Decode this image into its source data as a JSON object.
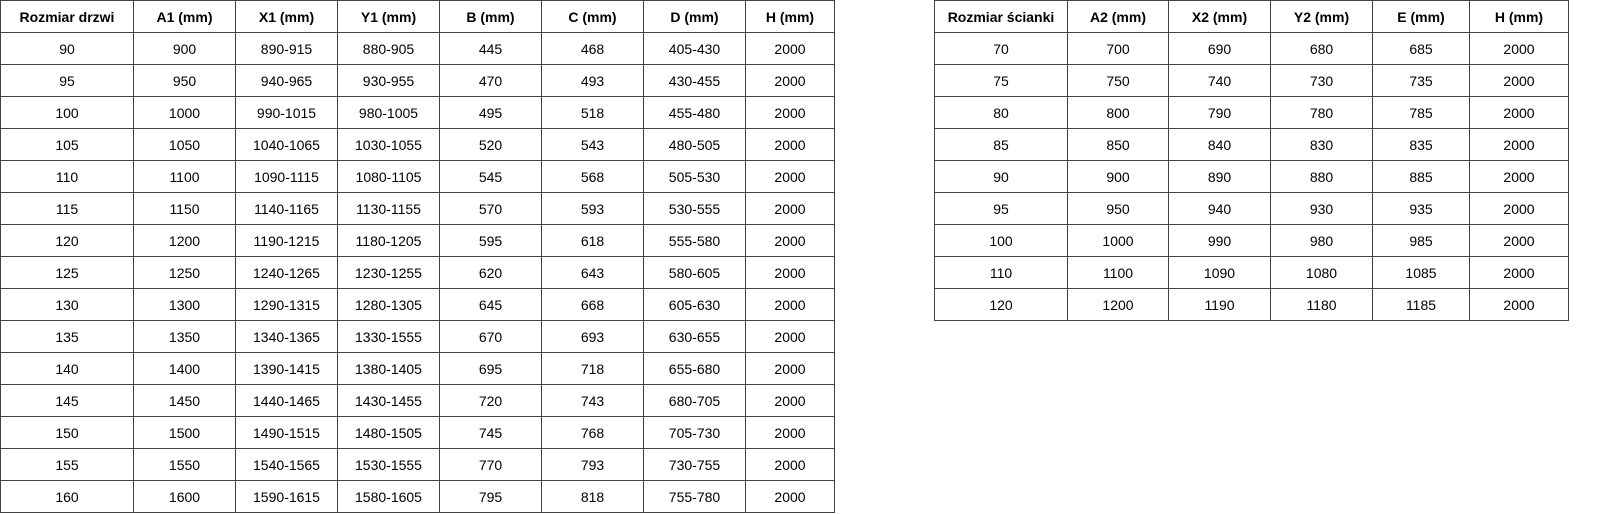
{
  "doors_table": {
    "headers": [
      "Rozmiar drzwi",
      "A1 (mm)",
      "X1 (mm)",
      "Y1 (mm)",
      "B (mm)",
      "C (mm)",
      "D (mm)",
      "H (mm)"
    ],
    "rows": [
      [
        "90",
        "900",
        "890-915",
        "880-905",
        "445",
        "468",
        "405-430",
        "2000"
      ],
      [
        "95",
        "950",
        "940-965",
        "930-955",
        "470",
        "493",
        "430-455",
        "2000"
      ],
      [
        "100",
        "1000",
        "990-1015",
        "980-1005",
        "495",
        "518",
        "455-480",
        "2000"
      ],
      [
        "105",
        "1050",
        "1040-1065",
        "1030-1055",
        "520",
        "543",
        "480-505",
        "2000"
      ],
      [
        "110",
        "1100",
        "1090-1115",
        "1080-1105",
        "545",
        "568",
        "505-530",
        "2000"
      ],
      [
        "115",
        "1150",
        "1140-1165",
        "1130-1155",
        "570",
        "593",
        "530-555",
        "2000"
      ],
      [
        "120",
        "1200",
        "1190-1215",
        "1180-1205",
        "595",
        "618",
        "555-580",
        "2000"
      ],
      [
        "125",
        "1250",
        "1240-1265",
        "1230-1255",
        "620",
        "643",
        "580-605",
        "2000"
      ],
      [
        "130",
        "1300",
        "1290-1315",
        "1280-1305",
        "645",
        "668",
        "605-630",
        "2000"
      ],
      [
        "135",
        "1350",
        "1340-1365",
        "1330-1555",
        "670",
        "693",
        "630-655",
        "2000"
      ],
      [
        "140",
        "1400",
        "1390-1415",
        "1380-1405",
        "695",
        "718",
        "655-680",
        "2000"
      ],
      [
        "145",
        "1450",
        "1440-1465",
        "1430-1455",
        "720",
        "743",
        "680-705",
        "2000"
      ],
      [
        "150",
        "1500",
        "1490-1515",
        "1480-1505",
        "745",
        "768",
        "705-730",
        "2000"
      ],
      [
        "155",
        "1550",
        "1540-1565",
        "1530-1555",
        "770",
        "793",
        "730-755",
        "2000"
      ],
      [
        "160",
        "1600",
        "1590-1615",
        "1580-1605",
        "795",
        "818",
        "755-780",
        "2000"
      ]
    ]
  },
  "walls_table": {
    "headers": [
      "Rozmiar ścianki",
      "A2 (mm)",
      "X2 (mm)",
      "Y2 (mm)",
      "E (mm)",
      "H (mm)"
    ],
    "rows": [
      [
        "70",
        "700",
        "690",
        "680",
        "685",
        "2000"
      ],
      [
        "75",
        "750",
        "740",
        "730",
        "735",
        "2000"
      ],
      [
        "80",
        "800",
        "790",
        "780",
        "785",
        "2000"
      ],
      [
        "85",
        "850",
        "840",
        "830",
        "835",
        "2000"
      ],
      [
        "90",
        "900",
        "890",
        "880",
        "885",
        "2000"
      ],
      [
        "95",
        "950",
        "940",
        "930",
        "935",
        "2000"
      ],
      [
        "100",
        "1000",
        "990",
        "980",
        "985",
        "2000"
      ],
      [
        "110",
        "1100",
        "1090",
        "1080",
        "1085",
        "2000"
      ],
      [
        "120",
        "1200",
        "1190",
        "1180",
        "1185",
        "2000"
      ]
    ]
  }
}
